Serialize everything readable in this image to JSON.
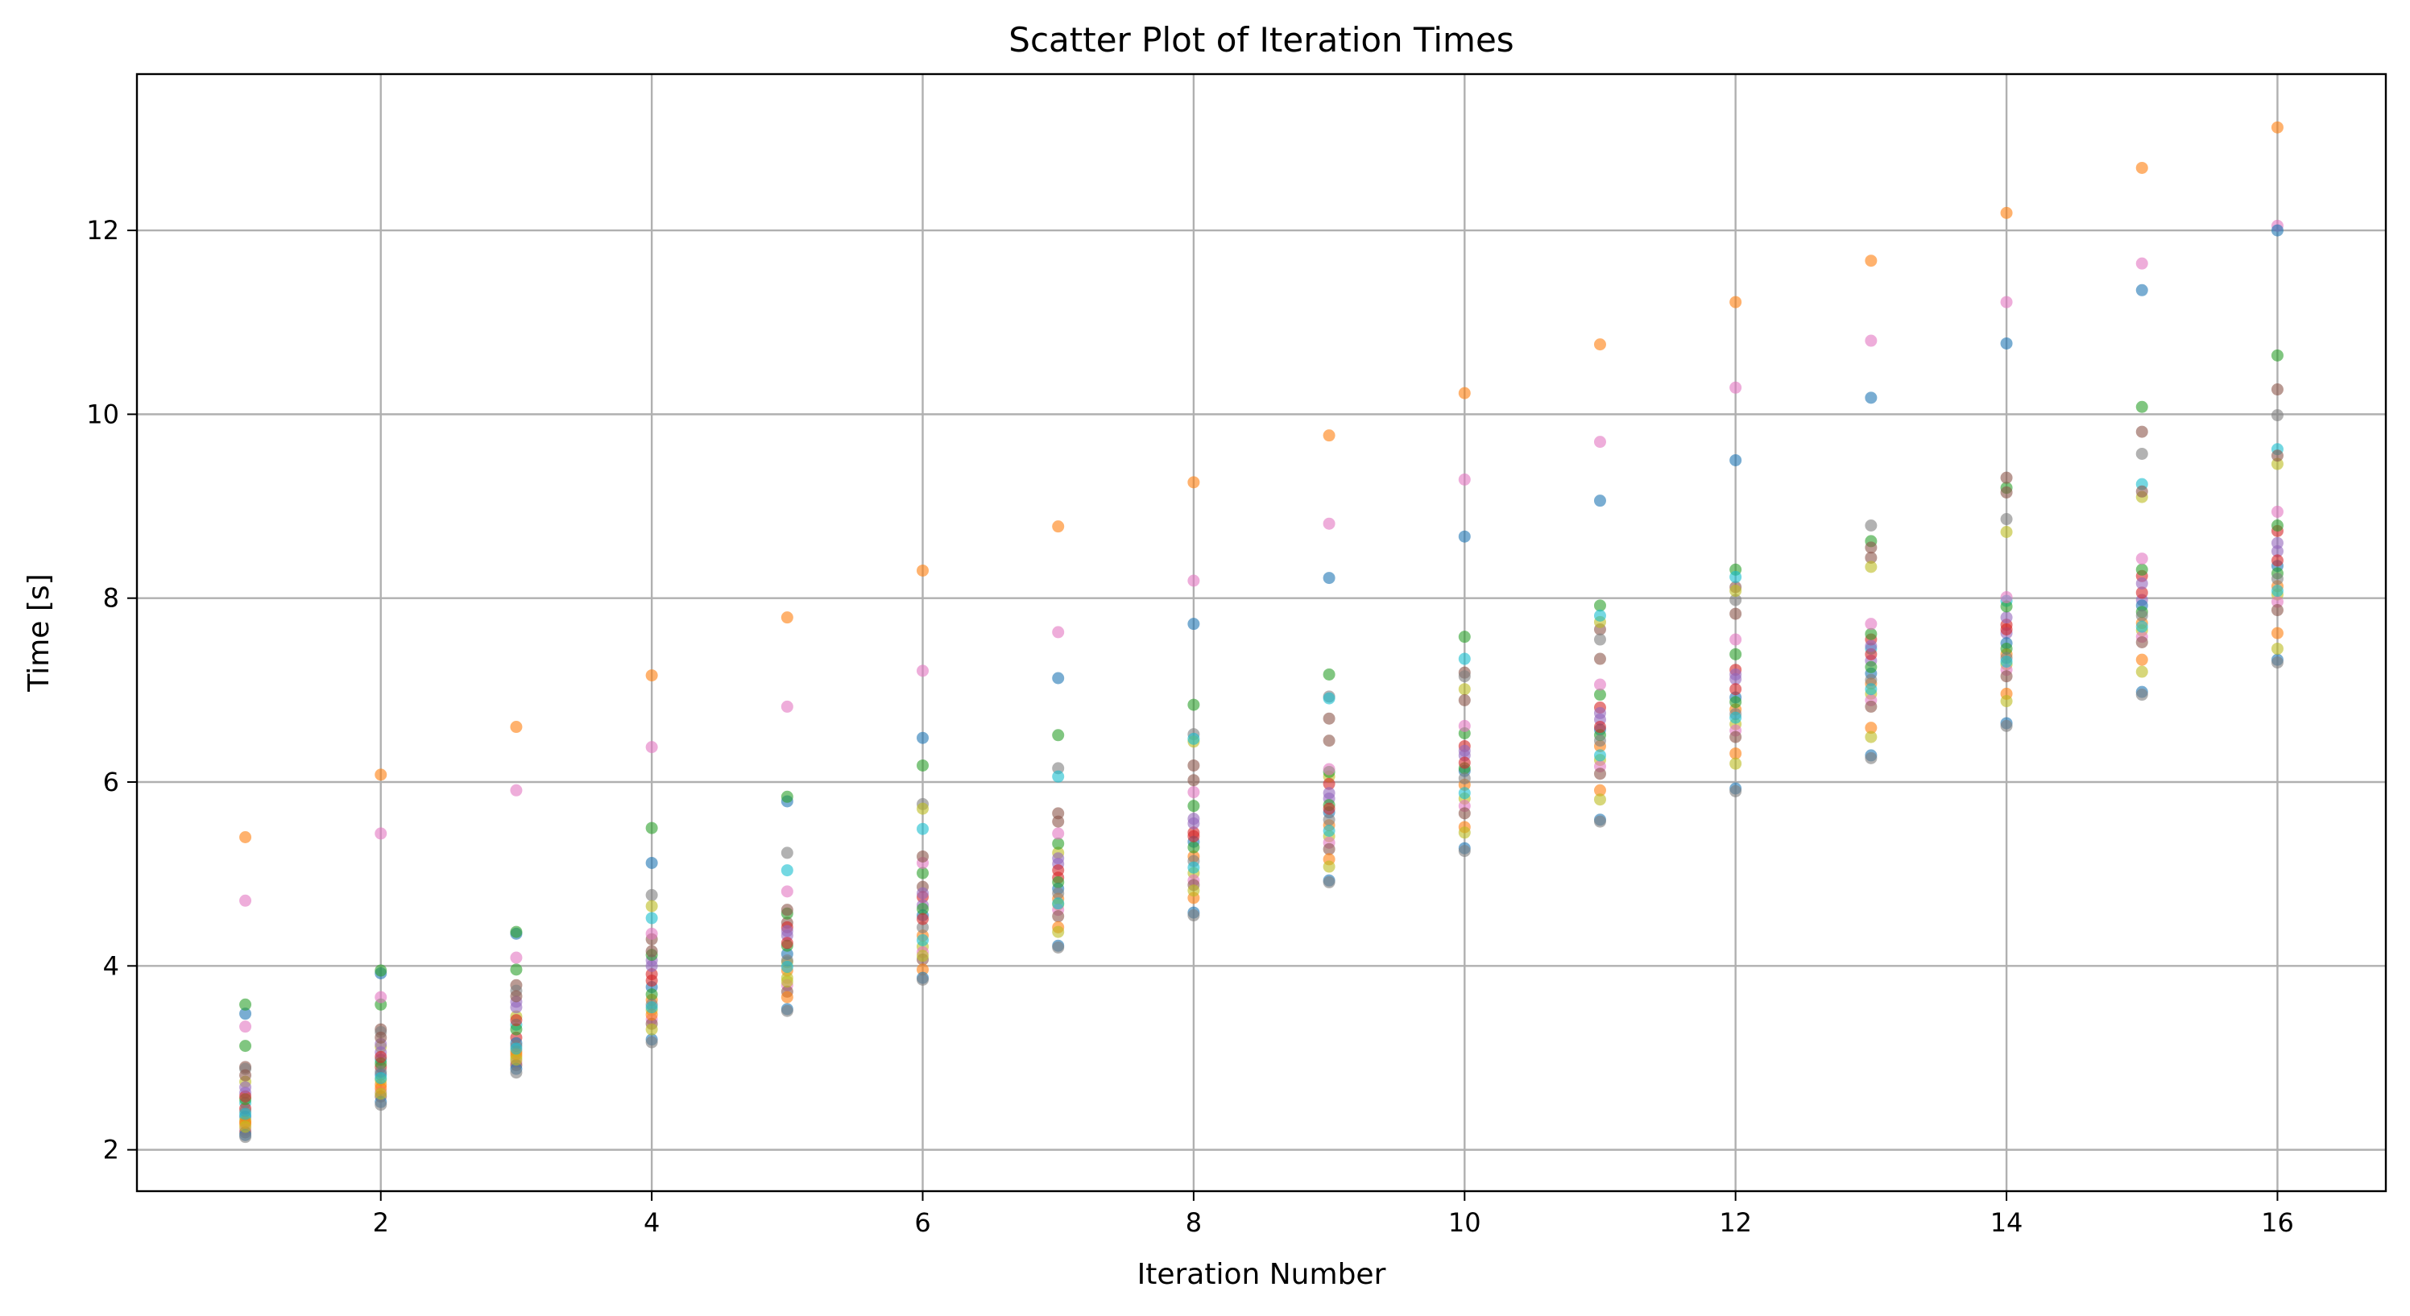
{
  "chart_data": {
    "type": "scatter",
    "title": "Scatter Plot of Iteration Times",
    "xlabel": "Iteration Number",
    "ylabel": "Time [s]",
    "xlim": [
      0.2,
      16.8
    ],
    "ylim": [
      1.55,
      13.7
    ],
    "xticks": [
      2,
      4,
      6,
      8,
      10,
      12,
      14,
      16
    ],
    "yticks": [
      2,
      4,
      6,
      8,
      10,
      12
    ],
    "grid": true,
    "legend": "none",
    "colors": [
      "#1f77b4",
      "#ff7f0e",
      "#2ca02c",
      "#d62728",
      "#9467bd",
      "#8c564b",
      "#e377c2",
      "#7f7f7f",
      "#bcbd22",
      "#17becf"
    ],
    "x": [
      1,
      2,
      3,
      4,
      5,
      6,
      7,
      8,
      9,
      10,
      11,
      12,
      13,
      14,
      15,
      16
    ],
    "series": [
      {
        "color": "#ff7f0e",
        "values": [
          5.4,
          6.08,
          6.6,
          7.16,
          7.79,
          8.3,
          8.78,
          9.26,
          9.77,
          10.23,
          10.76,
          11.22,
          11.67,
          12.19,
          12.68,
          13.12
        ]
      },
      {
        "color": "#e377c2",
        "values": [
          4.71,
          5.44,
          5.91,
          6.38,
          6.82,
          7.21,
          7.63,
          8.19,
          8.81,
          9.29,
          9.7,
          10.29,
          10.8,
          11.22,
          11.64,
          12.05
        ]
      },
      {
        "color": "#1f77b4",
        "values": [
          3.48,
          3.92,
          4.35,
          5.12,
          5.79,
          6.48,
          7.13,
          7.72,
          8.22,
          8.67,
          9.06,
          9.5,
          10.18,
          10.77,
          11.35,
          12.0
        ]
      },
      {
        "color": "#2ca02c",
        "values": [
          3.58,
          3.95,
          4.37,
          5.5,
          5.84,
          6.18,
          6.51,
          6.84,
          7.17,
          7.58,
          7.92,
          8.31,
          8.62,
          9.2,
          10.08,
          10.64
        ]
      },
      {
        "color": "#8c564b",
        "values": [
          2.9,
          3.31,
          3.79,
          4.29,
          4.47,
          4.86,
          5.66,
          6.18,
          6.69,
          7.19,
          7.66,
          8.12,
          8.44,
          9.31,
          9.81,
          10.27
        ]
      },
      {
        "color": "#7f7f7f",
        "values": [
          2.88,
          3.28,
          3.73,
          4.77,
          5.23,
          5.76,
          6.15,
          6.52,
          6.93,
          7.15,
          7.55,
          7.98,
          8.79,
          8.86,
          9.57,
          9.99
        ]
      },
      {
        "color": "#bcbd22",
        "values": [
          2.74,
          3.12,
          3.45,
          4.65,
          4.04,
          5.71,
          5.23,
          6.44,
          6.06,
          7.01,
          7.74,
          8.08,
          8.34,
          8.72,
          9.1,
          9.46
        ]
      },
      {
        "color": "#17becf",
        "values": [
          2.51,
          2.98,
          3.36,
          4.52,
          5.04,
          5.49,
          6.06,
          6.47,
          6.91,
          7.34,
          7.81,
          8.23,
          7.45,
          7.97,
          9.24,
          9.62
        ]
      },
      {
        "color": "#d62728",
        "values": [
          2.45,
          2.9,
          3.22,
          3.91,
          4.42,
          4.75,
          4.96,
          5.45,
          5.98,
          6.39,
          6.81,
          7.22,
          7.55,
          7.71,
          8.24,
          8.73
        ]
      },
      {
        "color": "#9467bd",
        "values": [
          2.62,
          3.06,
          3.55,
          4.06,
          4.33,
          4.66,
          5.11,
          5.55,
          5.82,
          6.29,
          6.68,
          7.12,
          7.32,
          7.62,
          7.98,
          8.51
        ]
      },
      {
        "color": "#1f77b4",
        "values": [
          2.36,
          2.82,
          3.16,
          3.77,
          4.13,
          4.55,
          4.84,
          5.35,
          5.67,
          6.12,
          6.57,
          6.92,
          7.18,
          7.51,
          7.92,
          8.35
        ]
      },
      {
        "color": "#ff7f0e",
        "values": [
          2.28,
          2.71,
          3.07,
          3.63,
          3.95,
          4.33,
          4.73,
          5.19,
          5.53,
          5.97,
          6.39,
          6.79,
          7.07,
          7.39,
          7.73,
          8.13
        ]
      },
      {
        "color": "#2ca02c",
        "values": [
          2.55,
          2.94,
          3.31,
          3.69,
          4.22,
          4.62,
          4.91,
          5.29,
          5.75,
          6.15,
          6.51,
          6.87,
          7.25,
          7.45,
          7.85,
          8.27
        ]
      },
      {
        "color": "#bcbd22",
        "values": [
          2.32,
          2.76,
          3.01,
          3.52,
          3.87,
          4.21,
          4.67,
          5.01,
          5.41,
          5.82,
          6.24,
          6.63,
          6.96,
          7.28,
          7.65,
          8.04
        ]
      },
      {
        "color": "#7f7f7f",
        "values": [
          2.42,
          2.85,
          3.13,
          3.58,
          4.06,
          4.42,
          4.79,
          5.14,
          5.59,
          6.04,
          6.45,
          6.74,
          7.11,
          7.35,
          7.81,
          8.21
        ]
      },
      {
        "color": "#e377c2",
        "values": [
          2.22,
          2.63,
          2.95,
          3.42,
          3.79,
          4.15,
          4.61,
          4.93,
          5.34,
          5.74,
          6.17,
          6.56,
          6.89,
          7.22,
          7.58,
          7.96
        ]
      },
      {
        "color": "#8c564b",
        "values": [
          2.19,
          2.58,
          2.92,
          3.37,
          3.72,
          4.07,
          4.54,
          4.88,
          5.27,
          5.66,
          6.09,
          6.49,
          6.82,
          7.15,
          7.52,
          7.87
        ]
      },
      {
        "color": "#ff7f0e",
        "values": [
          2.3,
          2.67,
          3.04,
          3.47,
          3.66,
          3.96,
          4.42,
          4.74,
          5.16,
          5.51,
          5.91,
          6.31,
          6.59,
          6.96,
          7.33,
          7.62
        ]
      },
      {
        "color": "#1f77b4",
        "values": [
          2.16,
          2.52,
          2.88,
          3.2,
          3.53,
          3.87,
          4.22,
          4.58,
          4.93,
          5.28,
          5.59,
          5.93,
          6.29,
          6.64,
          6.98,
          7.33
        ]
      },
      {
        "color": "#7f7f7f",
        "values": [
          2.14,
          2.49,
          2.84,
          3.17,
          3.51,
          3.85,
          4.2,
          4.55,
          4.91,
          5.25,
          5.57,
          5.9,
          6.26,
          6.61,
          6.95,
          7.3
        ]
      },
      {
        "color": "#bcbd22",
        "values": [
          2.25,
          2.61,
          2.98,
          3.31,
          3.83,
          4.11,
          4.37,
          4.82,
          5.08,
          5.45,
          5.81,
          6.2,
          6.49,
          6.88,
          7.2,
          7.45
        ]
      },
      {
        "color": "#17becf",
        "values": [
          2.39,
          2.78,
          3.1,
          3.55,
          3.99,
          4.28,
          4.68,
          5.07,
          5.47,
          5.88,
          6.29,
          6.7,
          7.01,
          7.31,
          7.69,
          8.08
        ]
      },
      {
        "color": "#d62728",
        "values": [
          2.58,
          3.01,
          3.41,
          3.84,
          4.25,
          4.51,
          5.04,
          5.41,
          5.71,
          6.21,
          6.6,
          7.01,
          7.39,
          7.66,
          8.06,
          8.41
        ]
      },
      {
        "color": "#9467bd",
        "values": [
          2.68,
          3.15,
          3.61,
          4.0,
          4.38,
          4.79,
          5.17,
          5.6,
          5.88,
          6.34,
          6.75,
          7.17,
          7.48,
          7.79,
          8.16,
          8.6
        ]
      },
      {
        "color": "#2ca02c",
        "values": [
          3.13,
          3.58,
          3.96,
          4.12,
          4.57,
          5.01,
          5.33,
          5.74,
          6.11,
          6.53,
          6.95,
          7.39,
          7.61,
          7.91,
          8.31,
          8.79
        ]
      },
      {
        "color": "#e377c2",
        "values": [
          3.34,
          3.66,
          4.09,
          4.35,
          4.81,
          5.12,
          5.44,
          5.89,
          6.14,
          6.61,
          7.06,
          7.55,
          7.72,
          8.01,
          8.43,
          8.94
        ]
      },
      {
        "color": "#8c564b",
        "values": [
          2.81,
          3.22,
          3.67,
          4.16,
          4.61,
          5.19,
          5.57,
          6.02,
          6.45,
          6.89,
          7.34,
          7.83,
          8.55,
          9.15,
          9.16,
          9.55
        ]
      }
    ]
  }
}
